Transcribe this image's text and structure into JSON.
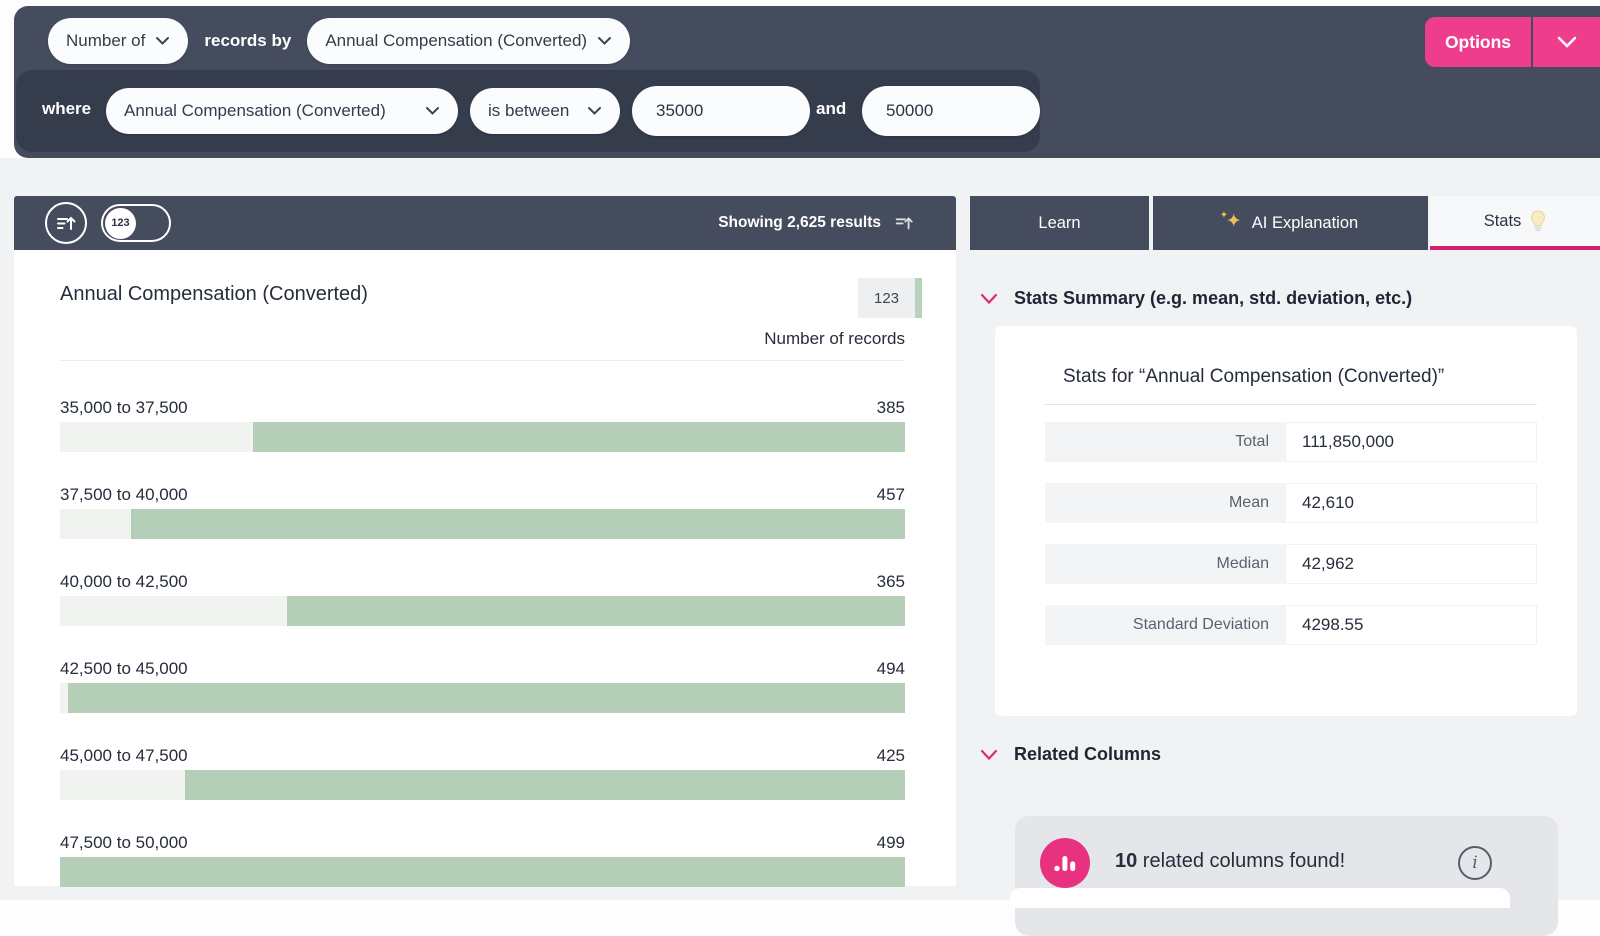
{
  "colors": {
    "slate_bar": "#454c5d",
    "slate_inset": "#353c4c",
    "accent_pink": "#ee3d8d",
    "tab_underline_pink": "#d62069",
    "bar_green": "#b5ceb8",
    "bar_track": "#f1f3f1",
    "badge_green_strip": "#b9d2bc",
    "related_card_gray": "#e4e6ea"
  },
  "query_bar": {
    "measure": "Number of",
    "records_by_label": "records by",
    "dimension": "Annual Compensation (Converted)",
    "options_label": "Options",
    "where": {
      "where_label": "where",
      "column": "Annual Compensation (Converted)",
      "operator": "is between",
      "value_min": "35000",
      "and_label": "and",
      "value_max": "50000"
    }
  },
  "results_header": {
    "showing": "Showing 2,625 results",
    "toggle_badge": "123"
  },
  "tabs": {
    "learn": "Learn",
    "ai": "AI Explanation",
    "stats": "Stats"
  },
  "chart": {
    "title": "Annual Compensation (Converted)",
    "badge": "123",
    "value_column_label": "Number of records",
    "rows": [
      {
        "label": "35,000 to 37,500",
        "value": "385",
        "pct": 77.2
      },
      {
        "label": "37,500 to 40,000",
        "value": "457",
        "pct": 91.6
      },
      {
        "label": "40,000 to 42,500",
        "value": "365",
        "pct": 73.1
      },
      {
        "label": "42,500 to 45,000",
        "value": "494",
        "pct": 99.0
      },
      {
        "label": "45,000 to 47,500",
        "value": "425",
        "pct": 85.2
      },
      {
        "label": "47,500 to 50,000",
        "value": "499",
        "pct": 100
      }
    ]
  },
  "stats": {
    "section_title": "Stats Summary (e.g. mean, std. deviation, etc.)",
    "card_title": "Stats for “Annual Compensation (Converted)”",
    "rows": [
      {
        "label": "Total",
        "value": "111,850,000"
      },
      {
        "label": "Mean",
        "value": "42,610"
      },
      {
        "label": "Median",
        "value": "42,962"
      },
      {
        "label": "Standard Deviation",
        "value": "4298.55"
      }
    ]
  },
  "related": {
    "section_title": "Related Columns",
    "count": "10",
    "message": " related columns found!"
  },
  "chart_data": {
    "type": "bar",
    "title": "Annual Compensation (Converted)",
    "ylabel": "Number of records",
    "categories": [
      "35,000 to 37,500",
      "37,500 to 40,000",
      "40,000 to 42,500",
      "42,500 to 45,000",
      "45,000 to 47,500",
      "47,500 to 50,000"
    ],
    "values": [
      385,
      457,
      365,
      494,
      425,
      499
    ],
    "orientation": "horizontal",
    "bar_alignment": "right",
    "xlim": [
      0,
      499
    ],
    "total_shown": 2625
  }
}
